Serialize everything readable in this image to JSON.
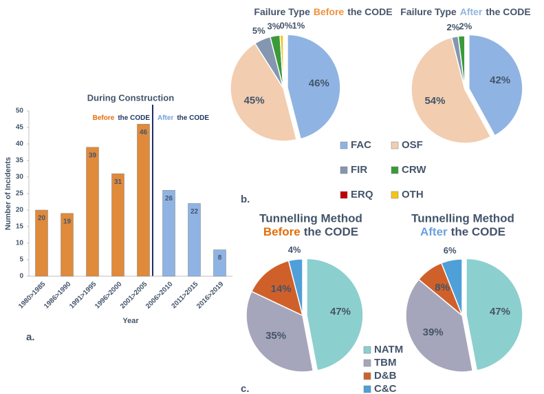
{
  "chart_data": [
    {
      "type": "bar",
      "title": "During Construction",
      "panel_label": "a.",
      "categories": [
        "1980>1985",
        "1986>1990",
        "1991>1995",
        "1996>2000",
        "2001>2005",
        "2006>2010",
        "2011>2015",
        "2016>2019"
      ],
      "values": [
        20,
        19,
        39,
        31,
        46,
        26,
        22,
        8
      ],
      "colors": [
        "#e08a3c",
        "#e08a3c",
        "#e08a3c",
        "#e08a3c",
        "#e08a3c",
        "#8fb4e3",
        "#8fb4e3",
        "#8fb4e3"
      ],
      "xlabel": "Year",
      "ylabel": "Number of Incidents",
      "ylim": [
        0,
        50
      ],
      "yticks": [
        0,
        5,
        10,
        15,
        20,
        25,
        30,
        35,
        40,
        45,
        50
      ],
      "grid": false,
      "annotations": [
        {
          "parts": [
            {
              "text": "Before",
              "color": "#e46c0a"
            },
            {
              "text": "the CODE",
              "color": "#1f3864"
            }
          ]
        },
        {
          "parts": [
            {
              "text": "After",
              "color": "#6fa0dc"
            },
            {
              "text": "the CODE",
              "color": "#1f3864"
            }
          ]
        }
      ]
    },
    {
      "type": "pie",
      "panel_label": "b.",
      "title": [
        {
          "text": "Failure Type",
          "color": "#44546a"
        },
        {
          "text": "Before",
          "color": "#f0913c"
        },
        {
          "text": "the CODE",
          "color": "#44546a"
        }
      ],
      "categories": [
        "FAC",
        "OSF",
        "FIR",
        "CRW",
        "ERQ",
        "OTH"
      ],
      "values": [
        46,
        45,
        5,
        3,
        0,
        1
      ],
      "value_labels": [
        "46%",
        "45%",
        "5%",
        "3%",
        "0%",
        "1%"
      ],
      "colors": [
        "#8fb4e3",
        "#f2cdb0",
        "#8496b0",
        "#3a9a3a",
        "#c00000",
        "#f5c518"
      ],
      "legend": true
    },
    {
      "type": "pie",
      "title": [
        {
          "text": "Failure Type",
          "color": "#44546a"
        },
        {
          "text": "After",
          "color": "#8fb4e3"
        },
        {
          "text": "the CODE",
          "color": "#44546a"
        }
      ],
      "categories": [
        "FAC",
        "OSF",
        "FIR",
        "CRW",
        "ERQ",
        "OTH"
      ],
      "values": [
        42,
        54,
        2,
        2,
        0,
        0
      ],
      "value_labels": [
        "42%",
        "54%",
        "2%",
        "2%",
        null,
        null
      ],
      "colors": [
        "#8fb4e3",
        "#f2cdb0",
        "#8496b0",
        "#3a9a3a",
        "#c00000",
        "#f5c518"
      ],
      "legend": false
    },
    {
      "type": "pie",
      "panel_label": "c.",
      "title": "Tunnelling Method",
      "subtitle": [
        {
          "text": "Before",
          "color": "#e46c0a"
        },
        {
          "text": "the CODE",
          "color": "#44546a"
        }
      ],
      "categories": [
        "NATM",
        "TBM",
        "D&B",
        "C&C"
      ],
      "values": [
        47,
        35,
        14,
        4
      ],
      "value_labels": [
        "47%",
        "35%",
        "14%",
        "4%"
      ],
      "colors": [
        "#8ccfcf",
        "#a5a5bb",
        "#d0602a",
        "#4f9fd8"
      ],
      "legend": true
    },
    {
      "type": "pie",
      "title": "Tunnelling Method",
      "subtitle": [
        {
          "text": "After",
          "color": "#6fa0dc"
        },
        {
          "text": "the CODE",
          "color": "#44546a"
        }
      ],
      "categories": [
        "NATM",
        "TBM",
        "D&B",
        "C&C"
      ],
      "values": [
        47,
        39,
        8,
        6
      ],
      "value_labels": [
        "47%",
        "39%",
        "8%",
        "6%"
      ],
      "colors": [
        "#8ccfcf",
        "#a5a5bb",
        "#d0602a",
        "#4f9fd8"
      ],
      "legend": false
    }
  ]
}
